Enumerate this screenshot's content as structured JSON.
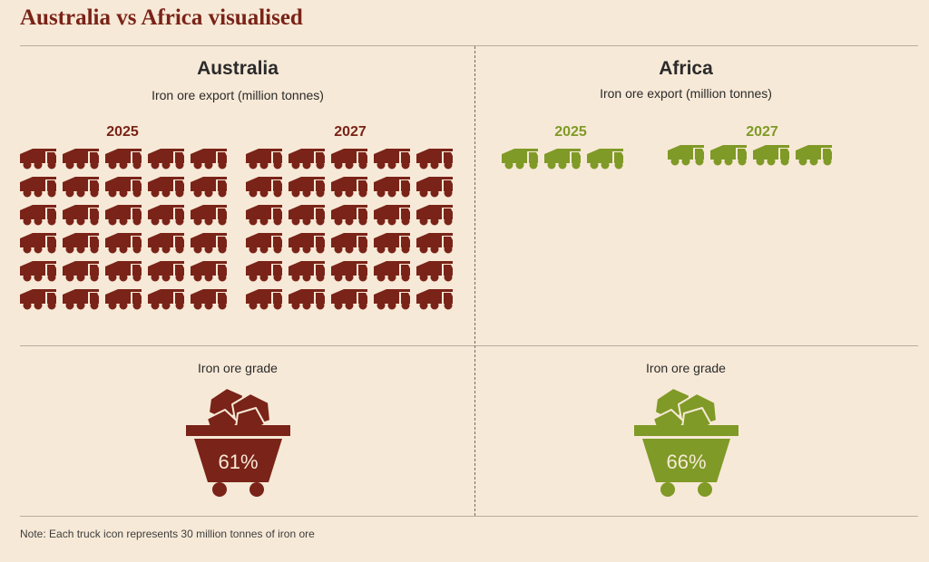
{
  "title": "Australia vs Africa visualised",
  "note": "Note: Each truck icon represents 30 million tonnes of iron ore",
  "colors": {
    "background": "#f7e9d7",
    "australia": "#7a2318",
    "africa": "#7f9a26",
    "title": "#7a2318"
  },
  "chart_data": {
    "type": "pictogram",
    "unit": "truck icon",
    "unit_value": 30,
    "unit_label": "million tonnes of iron ore",
    "metric": "Iron ore export (million tonnes)",
    "regions": [
      {
        "name": "Australia",
        "subtitle": "Iron ore export (million tonnes)",
        "color": "#7a2318",
        "years": [
          {
            "label": "2025",
            "icons": 30
          },
          {
            "label": "2027",
            "icons": 30.8
          }
        ],
        "grade_label": "Iron ore grade",
        "grade": "61%"
      },
      {
        "name": "Africa",
        "subtitle": "Iron ore export (million tonnes)",
        "color": "#7f9a26",
        "years": [
          {
            "label": "2025",
            "icons": 3
          },
          {
            "label": "2027",
            "icons": 4.4
          }
        ],
        "grade_label": "Iron ore grade",
        "grade": "66%"
      }
    ]
  }
}
